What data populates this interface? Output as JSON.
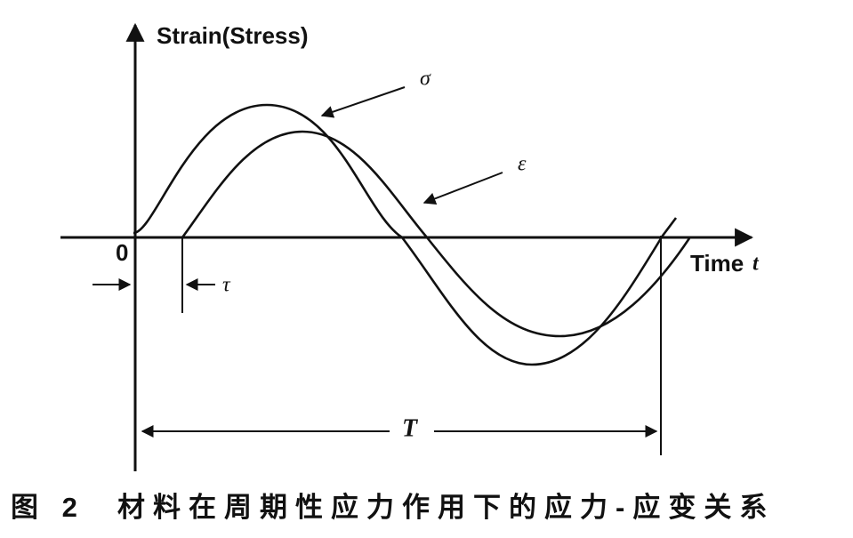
{
  "axis_labels": {
    "y": "Strain(Stress)",
    "x": "Time",
    "x_symbol": "t"
  },
  "origin": "0",
  "curves": [
    {
      "label": "σ"
    },
    {
      "label": "ε"
    }
  ],
  "annotations": {
    "lag": "τ",
    "period": "T"
  },
  "caption": {
    "figure": "图 2",
    "text": "材料在周期性应力作用下的应力-应变关系"
  }
}
